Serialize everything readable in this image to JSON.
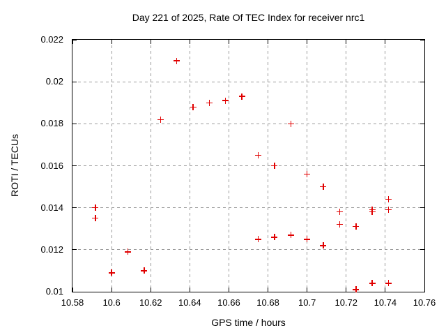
{
  "chart_data": {
    "type": "scatter",
    "title": "Day 221 of 2025, Rate Of TEC Index for receiver nrc1",
    "xlabel": "GPS time / hours",
    "ylabel": "ROTI / TECUs",
    "xlim": [
      10.58,
      10.76
    ],
    "ylim": [
      0.01,
      0.022
    ],
    "xtick_values": [
      10.58,
      10.6,
      10.62,
      10.64,
      10.66,
      10.68,
      10.7,
      10.72,
      10.74,
      10.76
    ],
    "xtick_labels": [
      "10.58",
      "10.6",
      "10.62",
      "10.64",
      "10.66",
      "10.68",
      "10.7",
      "10.72",
      "10.74",
      "10.76"
    ],
    "ytick_values": [
      0.01,
      0.012,
      0.014,
      0.016,
      0.018,
      0.02,
      0.022
    ],
    "ytick_labels": [
      "0.01",
      "0.012",
      "0.014",
      "0.016",
      "0.018",
      "0.02",
      "0.022"
    ],
    "grid": true,
    "legend": false,
    "marker": "plus",
    "marker_color": "#e00000",
    "grid_color": "#9a9a9a",
    "points": [
      [
        10.5917,
        0.014
      ],
      [
        10.5917,
        0.0135
      ],
      [
        10.6,
        0.0109
      ],
      [
        10.6083,
        0.0119
      ],
      [
        10.6167,
        0.011
      ],
      [
        10.625,
        0.0182
      ],
      [
        10.6333,
        0.021
      ],
      [
        10.6417,
        0.0188
      ],
      [
        10.65,
        0.019
      ],
      [
        10.6583,
        0.0191
      ],
      [
        10.6667,
        0.0193
      ],
      [
        10.675,
        0.0165
      ],
      [
        10.675,
        0.0125
      ],
      [
        10.6833,
        0.016
      ],
      [
        10.6833,
        0.0126
      ],
      [
        10.6917,
        0.018
      ],
      [
        10.6917,
        0.0127
      ],
      [
        10.7,
        0.0156
      ],
      [
        10.7,
        0.0125
      ],
      [
        10.7083,
        0.015
      ],
      [
        10.7083,
        0.0122
      ],
      [
        10.7167,
        0.0138
      ],
      [
        10.7167,
        0.0132
      ],
      [
        10.725,
        0.0131
      ],
      [
        10.725,
        0.0101
      ],
      [
        10.7333,
        0.0139
      ],
      [
        10.7333,
        0.0138
      ],
      [
        10.7333,
        0.0104
      ],
      [
        10.7417,
        0.0144
      ],
      [
        10.7417,
        0.0139
      ],
      [
        10.7417,
        0.0104
      ]
    ]
  }
}
